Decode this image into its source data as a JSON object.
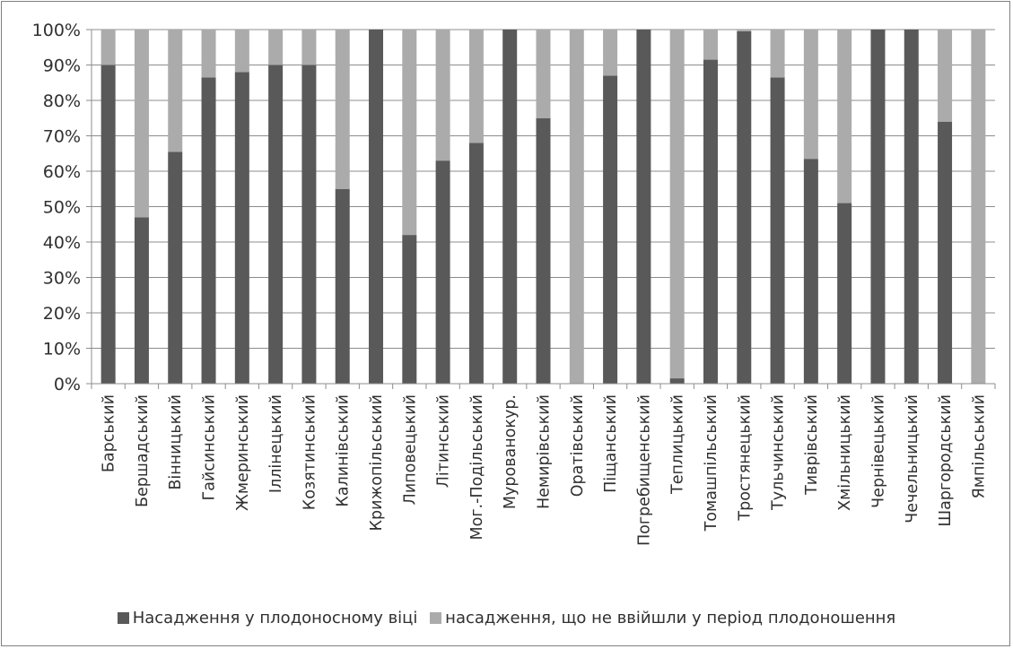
{
  "chart_data": {
    "type": "bar",
    "stacked": "percent",
    "categories": [
      "Барський",
      "Бершадський",
      "Вінницький",
      "Гайсинський",
      "Жмеринський",
      "Іллінецький",
      "Козятинський",
      "Калинівський",
      "Крижопільський",
      "Липовецький",
      "Літинський",
      "Мог.-Подільський",
      "Мурованокур.",
      "Немирівський",
      "Оратівський",
      "Піщанський",
      "Погребищенський",
      "Теплицький",
      "Томашпільський",
      "Тростянецький",
      "Тульчинський",
      "Тиврівський",
      "Хмільницький",
      "Чернівецький",
      "Чечельницький",
      "Шаргородський",
      "Ямпільський"
    ],
    "series": [
      {
        "name": "Насадження у плодоносному віці",
        "color": "#595959",
        "values": [
          90,
          47,
          65.5,
          86.5,
          88,
          90,
          90,
          55,
          100,
          42,
          63,
          68,
          100,
          75,
          0,
          87,
          100,
          1.5,
          91.5,
          99.5,
          86.5,
          63.5,
          51,
          100,
          100,
          74,
          0
        ]
      },
      {
        "name": "насадження, що не ввійшли у період плодоношення",
        "color": "#ababab",
        "values": [
          10,
          53,
          34.5,
          13.5,
          12,
          10,
          10,
          45,
          0,
          58,
          37,
          32,
          0,
          25,
          100,
          13,
          0,
          98.5,
          8.5,
          0.5,
          13.5,
          36.5,
          49,
          0,
          0,
          26,
          100
        ]
      }
    ],
    "yticks": [
      "0%",
      "10%",
      "20%",
      "30%",
      "40%",
      "50%",
      "60%",
      "70%",
      "80%",
      "90%",
      "100%"
    ],
    "ylim": [
      0,
      100
    ],
    "grid": true,
    "legend": "bottom"
  }
}
